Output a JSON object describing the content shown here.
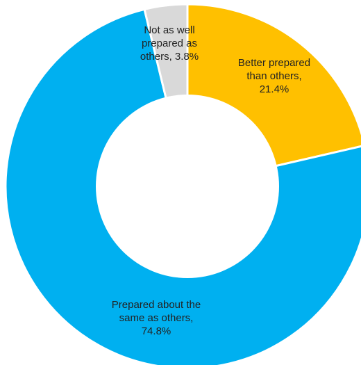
{
  "chart_data": {
    "type": "pie",
    "variant": "donut",
    "start_angle_deg": 0,
    "direction": "clockwise",
    "slices": [
      {
        "label": "Better prepared than others",
        "value": 21.4,
        "display": [
          "Better prepared",
          "than others,",
          "21.4%"
        ],
        "color": "#FFC000"
      },
      {
        "label": "Prepared about the same as others",
        "value": 74.8,
        "display": [
          "Prepared about the",
          "same as others,",
          "74.8%"
        ],
        "color": "#00B0F0"
      },
      {
        "label": "Not as well prepared as others",
        "value": 3.8,
        "display": [
          "Not as well",
          "prepared as",
          "others, 3.8%"
        ],
        "color": "#D9D9D9"
      }
    ],
    "title": "",
    "legend": "none"
  }
}
